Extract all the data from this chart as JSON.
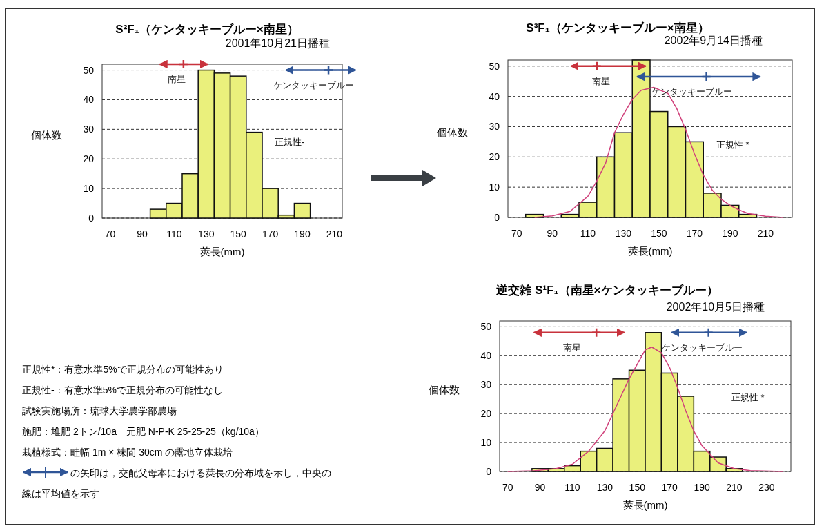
{
  "chart_data": [
    {
      "type": "histogram",
      "title": "S²F₁（ケンタッキーブルー×南星）",
      "subtitle": "2001年10月21日播種",
      "xlabel": "莢長(mm)",
      "ylabel": "個体数",
      "xlim": [
        65,
        215
      ],
      "xticks": [
        70,
        90,
        110,
        130,
        150,
        170,
        190,
        210
      ],
      "ylim": [
        0,
        52
      ],
      "yticks": [
        0,
        10,
        20,
        30,
        40,
        50
      ],
      "grid": "y",
      "color": "#eaf07c",
      "bins": [
        95,
        105,
        115,
        125,
        135,
        145,
        155,
        165,
        175,
        185,
        195
      ],
      "values": [
        3,
        5,
        15,
        50,
        49,
        48,
        29,
        10,
        1,
        5
      ],
      "series": [
        {
          "type": "scatter",
          "name": "南星",
          "color": "#c8323c",
          "marker": "cross",
          "x": [
            115.8
          ],
          "values": [
            52
          ],
          "xerrors": [
            [
              101,
              131
            ]
          ]
        },
        {
          "type": "scatter",
          "name": "ケンタッキーブルー",
          "color": "#2f5597",
          "marker": "cross",
          "x": [
            206.4
          ],
          "values": [
            50
          ],
          "xerrors": [
            [
              179.7,
              223.4
            ]
          ]
        }
      ],
      "annotations": [
        "正規性-",
        "正規性*：有意水準5%で正規分布の可能性あり",
        "正規性-：有意水準5%で正規分布の可能性なし",
        "試験実施場所：琉球大学農学部農場",
        "施肥：堆肥 2トン/10a　元肥 N-P-K 25-25-25（kg/10a）",
        "栽植様式：畦幅 1m × 株間 30cm の露地立体栽培",
        "の矢印は，交配父母本における莢長の分布域を示し，中央の",
        "線は平均値を示す"
      ]
    },
    {
      "type": "histogram",
      "title": "S³F₁（ケンタッキーブルー×南星）",
      "subtitle": "2002年9月14日播種",
      "xlabel": "莢長(mm)",
      "ylabel": "個体数",
      "xlim": [
        65,
        225
      ],
      "xticks": [
        70,
        90,
        110,
        130,
        150,
        170,
        190,
        210
      ],
      "ylim": [
        0,
        52
      ],
      "yticks": [
        0,
        10,
        20,
        30,
        40,
        50
      ],
      "grid": "y",
      "color": "#eaf07c",
      "bins": [
        75,
        85,
        95,
        105,
        115,
        125,
        135,
        145,
        155,
        165,
        175,
        185,
        195,
        205
      ],
      "values": [
        1,
        0,
        1,
        5,
        20,
        28,
        52,
        35,
        30,
        25,
        8,
        4,
        1
      ],
      "series": [
        {
          "type": "line",
          "color": "#d0407a",
          "x": [
            80,
            90,
            100,
            110,
            115,
            120,
            125,
            130,
            135,
            140,
            147,
            155,
            160,
            165,
            170,
            175,
            180,
            185,
            190,
            195,
            200,
            210,
            220
          ],
          "values": [
            0,
            0.5,
            2,
            7,
            12,
            18,
            28,
            34,
            39,
            42,
            43,
            41,
            36,
            29,
            21,
            14,
            9,
            6,
            4,
            2.5,
            1.3,
            0.4,
            0
          ]
        },
        {
          "type": "scatter",
          "name": "南星",
          "color": "#c8323c",
          "marker": "cross",
          "x": [
            115
          ],
          "values": [
            50
          ],
          "xerrors": [
            [
              100.4,
              142.6
            ]
          ]
        },
        {
          "type": "scatter",
          "name": "ケンタッキーブルー",
          "color": "#2f5597",
          "marker": "cross",
          "x": [
            176.7
          ],
          "values": [
            46.5
          ],
          "xerrors": [
            [
              137.6,
              207
            ]
          ]
        }
      ],
      "annotations": [
        "正規性 *"
      ]
    },
    {
      "type": "histogram",
      "title": "逆交雑 S¹F₁（南星×ケンタッキーブルー）",
      "subtitle": "2002年10月5日播種",
      "xlabel": "莢長(mm)",
      "ylabel": "個体数",
      "xlim": [
        65,
        245
      ],
      "xticks": [
        70,
        90,
        110,
        130,
        150,
        170,
        190,
        210,
        230
      ],
      "ylim": [
        0,
        52
      ],
      "yticks": [
        0,
        10,
        20,
        30,
        40,
        50
      ],
      "grid": "y",
      "color": "#eaf07c",
      "bins": [
        85,
        95,
        105,
        115,
        125,
        135,
        145,
        155,
        165,
        175,
        185,
        195,
        205,
        215
      ],
      "values": [
        1,
        1,
        2,
        7,
        8,
        32,
        35,
        48,
        34,
        26,
        7,
        5,
        1
      ],
      "series": [
        {
          "type": "line",
          "color": "#d0407a",
          "x": [
            70,
            85,
            100,
            110,
            120,
            130,
            135,
            140,
            145,
            150,
            155,
            159,
            165,
            170,
            175,
            180,
            185,
            190,
            200,
            210,
            220,
            240
          ],
          "values": [
            0,
            0.2,
            1,
            2.5,
            7,
            14,
            20,
            26,
            32,
            37,
            42,
            43,
            41,
            36,
            29,
            21,
            14,
            9,
            3,
            1,
            0.3,
            0
          ]
        },
        {
          "type": "scatter",
          "name": "南星",
          "color": "#c8323c",
          "marker": "cross",
          "x": [
            124.8
          ],
          "values": [
            48
          ],
          "xerrors": [
            [
              86.2,
              142.1
            ]
          ]
        },
        {
          "type": "scatter",
          "name": "ケンタッキーブルー",
          "color": "#2f5597",
          "marker": "cross",
          "x": [
            194.1
          ],
          "values": [
            48
          ],
          "xerrors": [
            [
              171.3,
              217.7
            ]
          ]
        }
      ],
      "annotations": [
        "正規性 *"
      ]
    }
  ]
}
